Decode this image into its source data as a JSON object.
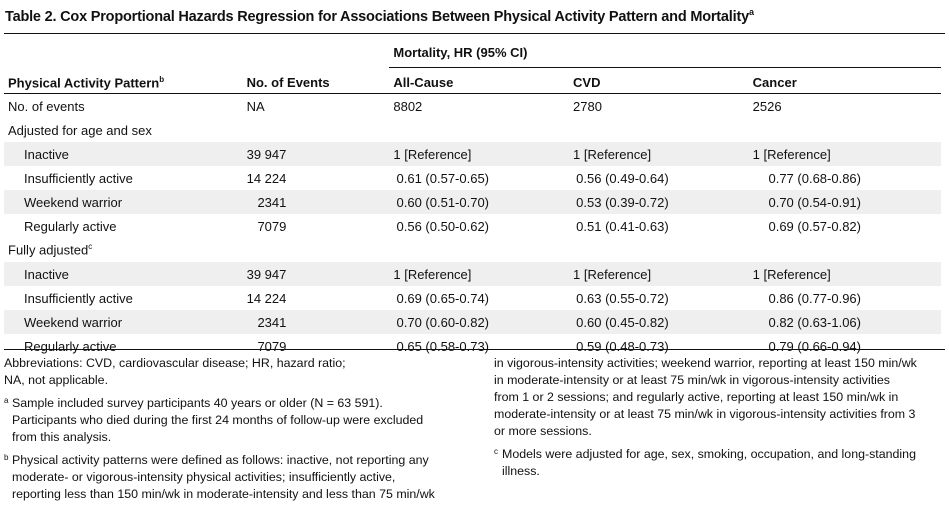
{
  "title": "Table 2. Cox Proportional Hazards Regression for Associations Between Physical Activity Pattern and Mortality",
  "title_note": "a",
  "header": {
    "group": "Mortality, HR (95% CI)",
    "col_pattern": "Physical Activity Pattern",
    "col_pattern_note": "b",
    "col_events": "No. of Events",
    "col_all": "All-Cause",
    "col_cvd": "CVD",
    "col_cancer": "Cancer"
  },
  "rows": {
    "events": {
      "label": "No. of events",
      "n": "NA",
      "all": "8802",
      "cvd": "2780",
      "cancer": "2526"
    },
    "age_sex": {
      "label": "Adjusted for age and sex"
    },
    "as_inactive": {
      "label": "Inactive",
      "n": "39 947",
      "all": "1 [Reference]",
      "cvd": "1 [Reference]",
      "cancer": "1 [Reference]"
    },
    "as_insuff": {
      "label": "Insufficiently active",
      "n": "14 224",
      "all": "0.61 (0.57-0.65)",
      "cvd": "0.56 (0.49-0.64)",
      "cancer": "0.77 (0.68-0.86)"
    },
    "as_weekend": {
      "label": "Weekend warrior",
      "n": "2341",
      "all": "0.60 (0.51-0.70)",
      "cvd": "0.53 (0.39-0.72)",
      "cancer": "0.70 (0.54-0.91)"
    },
    "as_regular": {
      "label": "Regularly active",
      "n": "7079",
      "all": "0.56 (0.50-0.62)",
      "cvd": "0.51 (0.41-0.63)",
      "cancer": "0.69 (0.57-0.82)"
    },
    "full": {
      "label": "Fully adjusted",
      "note": "c"
    },
    "fa_inactive": {
      "label": "Inactive",
      "n": "39 947",
      "all": "1 [Reference]",
      "cvd": "1 [Reference]",
      "cancer": "1 [Reference]"
    },
    "fa_insuff": {
      "label": "Insufficiently active",
      "n": "14 224",
      "all": "0.69 (0.65-0.74)",
      "cvd": "0.63 (0.55-0.72)",
      "cancer": "0.86 (0.77-0.96)"
    },
    "fa_weekend": {
      "label": "Weekend warrior",
      "n": "2341",
      "all": "0.70 (0.60-0.82)",
      "cvd": "0.60 (0.45-0.82)",
      "cancer": "0.82 (0.63-1.06)"
    },
    "fa_regular": {
      "label": "Regularly active",
      "n": "7079",
      "all": "0.65 (0.58-0.73)",
      "cvd": "0.59 (0.48-0.73)",
      "cancer": "0.79 (0.66-0.94)"
    }
  },
  "footnotes": {
    "abbrev_1": "Abbreviations: CVD, cardiovascular disease; HR, hazard ratio;",
    "abbrev_2": "NA, not applicable.",
    "a_mark": "a",
    "a_1": "Sample included survey participants 40 years or older (N = 63 591).",
    "a_2": "Participants who died during the first 24 months of follow-up were excluded",
    "a_3": "from this analysis.",
    "b_mark": "b",
    "b_1": "Physical activity patterns were defined as follows: inactive, not reporting any",
    "b_2": "moderate- or vigorous-intensity physical activities; insufficiently active,",
    "b_3": "reporting less than 150 min/wk in moderate-intensity and less than 75 min/wk",
    "r_1": "in vigorous-intensity activities; weekend warrior, reporting at least 150 min/wk",
    "r_2": "in moderate-intensity or at least 75 min/wk in vigorous-intensity activities",
    "r_3": "from 1 or 2 sessions; and regularly active, reporting at least 150 min/wk in",
    "r_4": "moderate-intensity or at least 75 min/wk in vigorous-intensity activities from 3",
    "r_5": "or more sessions.",
    "c_mark": "c",
    "c_1": "Models were adjusted for age, sex, smoking, occupation, and long-standing",
    "c_2": "illness."
  }
}
